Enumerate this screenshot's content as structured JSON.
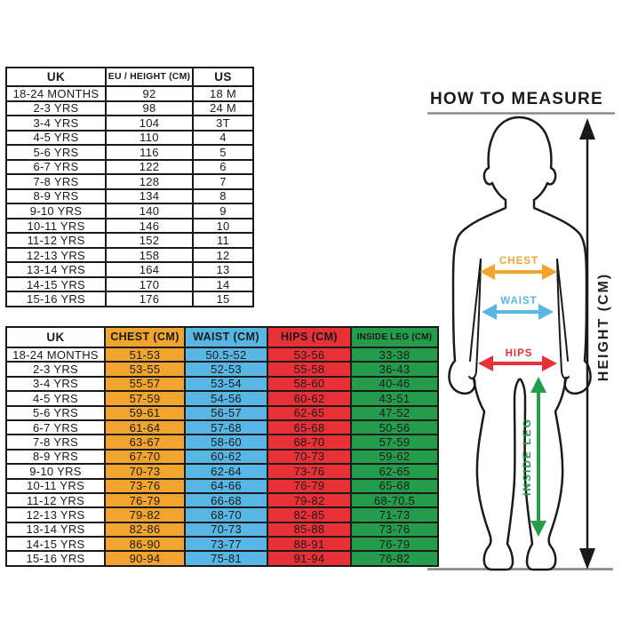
{
  "colors": {
    "orange": "#F2A52E",
    "blue": "#58B6E4",
    "red": "#E73137",
    "green": "#259C4C",
    "gray": "#8C8C8C",
    "ink": "#1A1A1A"
  },
  "size_table": {
    "headers": [
      "UK",
      "EU / HEIGHT (CM)",
      "US"
    ],
    "rows": [
      [
        "18-24 MONTHS",
        "92",
        "18 M"
      ],
      [
        "2-3 YRS",
        "98",
        "24 M"
      ],
      [
        "3-4 YRS",
        "104",
        "3T"
      ],
      [
        "4-5 YRS",
        "110",
        "4"
      ],
      [
        "5-6 YRS",
        "116",
        "5"
      ],
      [
        "6-7 YRS",
        "122",
        "6"
      ],
      [
        "7-8 YRS",
        "128",
        "7"
      ],
      [
        "8-9 YRS",
        "134",
        "8"
      ],
      [
        "9-10 YRS",
        "140",
        "9"
      ],
      [
        "10-11 YRS",
        "146",
        "10"
      ],
      [
        "11-12 YRS",
        "152",
        "11"
      ],
      [
        "12-13 YRS",
        "158",
        "12"
      ],
      [
        "13-14 YRS",
        "164",
        "13"
      ],
      [
        "14-15 YRS",
        "170",
        "14"
      ],
      [
        "15-16 YRS",
        "176",
        "15"
      ]
    ]
  },
  "measure_table": {
    "headers": [
      "UK",
      "CHEST (CM)",
      "WAIST (CM)",
      "HIPS (CM)",
      "INSIDE LEG (CM)"
    ],
    "rows": [
      [
        "18-24 MONTHS",
        "51-53",
        "50.5-52",
        "53-56",
        "33-38"
      ],
      [
        "2-3 YRS",
        "53-55",
        "52-53",
        "55-58",
        "36-43"
      ],
      [
        "3-4 YRS",
        "55-57",
        "53-54",
        "58-60",
        "40-46"
      ],
      [
        "4-5 YRS",
        "57-59",
        "54-56",
        "60-62",
        "43-51"
      ],
      [
        "5-6 YRS",
        "59-61",
        "56-57",
        "62-65",
        "47-52"
      ],
      [
        "6-7 YRS",
        "61-64",
        "57-68",
        "65-68",
        "50-56"
      ],
      [
        "7-8 YRS",
        "63-67",
        "58-60",
        "68-70",
        "57-59"
      ],
      [
        "8-9 YRS",
        "67-70",
        "60-62",
        "70-73",
        "59-62"
      ],
      [
        "9-10 YRS",
        "70-73",
        "62-64",
        "73-76",
        "62-65"
      ],
      [
        "10-11 YRS",
        "73-76",
        "64-66",
        "76-79",
        "65-68"
      ],
      [
        "11-12 YRS",
        "76-79",
        "66-68",
        "79-82",
        "68-70.5"
      ],
      [
        "12-13 YRS",
        "79-82",
        "68-70",
        "82-85",
        "71-73"
      ],
      [
        "13-14 YRS",
        "82-86",
        "70-73",
        "85-88",
        "73-76"
      ],
      [
        "14-15 YRS",
        "86-90",
        "73-77",
        "88-91",
        "76-79"
      ],
      [
        "15-16 YRS",
        "90-94",
        "75-81",
        "91-94",
        "76-82"
      ]
    ]
  },
  "diagram": {
    "title": "HOW TO MEASURE",
    "chest_label": "CHEST",
    "waist_label": "WAIST",
    "hips_label": "HIPS",
    "inside_leg_label": "INSIDE LEG",
    "height_label": "HEIGHT (CM)"
  }
}
